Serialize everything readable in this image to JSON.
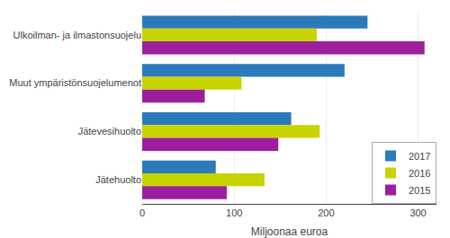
{
  "chart_data": {
    "type": "bar",
    "orientation": "horizontal",
    "categories": [
      "Ulkoilman- ja ilmastonsuojelu",
      "Muut ympäristönsuojelumenot",
      "Jätevesihuolto",
      "Jätehuolto"
    ],
    "series": [
      {
        "name": "2017",
        "color": "#2b7bba",
        "values": [
          245,
          220,
          162,
          80
        ]
      },
      {
        "name": "2016",
        "color": "#c8d400",
        "values": [
          190,
          108,
          193,
          133
        ]
      },
      {
        "name": "2015",
        "color": "#9e1f9e",
        "values": [
          307,
          68,
          148,
          92
        ]
      }
    ],
    "xlabel": "Miljoonaa euroa",
    "xlim": [
      0,
      320
    ],
    "xticks": [
      0,
      100,
      200,
      300
    ],
    "grid": true,
    "legend": "lower right"
  }
}
